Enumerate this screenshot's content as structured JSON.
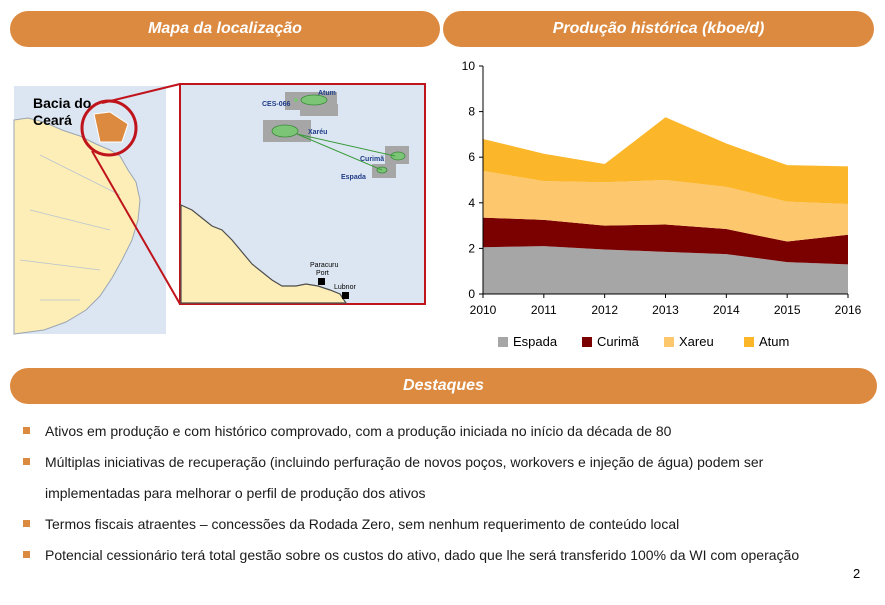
{
  "headers": {
    "map": "Mapa da localização",
    "chart": "Produção histórica (kboe/d)",
    "highlights": "Destaques"
  },
  "map": {
    "basin_label_line1": "Bacia do",
    "basin_label_line2": "Ceará",
    "fields": {
      "ces": "CES-066",
      "atum": "Atum",
      "xareu": "Xaréu",
      "curima": "Curimã",
      "espada": "Espada"
    },
    "ports": {
      "paracuru_line1": "Paracuru",
      "paracuru_line2": "Port",
      "lubnor": "Lubnor"
    }
  },
  "chart_data": {
    "type": "area",
    "stacked": true,
    "title": "Produção histórica (kboe/d)",
    "x": [
      "2010",
      "2011",
      "2012",
      "2013",
      "2014",
      "2015",
      "2016"
    ],
    "ylim": [
      0,
      10
    ],
    "yticks": [
      "0",
      "2",
      "4",
      "6",
      "8",
      "10"
    ],
    "series": [
      {
        "name": "Espada",
        "color": "#a6a6a6",
        "values": [
          2.05,
          2.1,
          1.95,
          1.85,
          1.75,
          1.4,
          1.3
        ]
      },
      {
        "name": "Curimã",
        "color": "#7b0000",
        "values": [
          1.3,
          1.15,
          1.05,
          1.2,
          1.1,
          0.9,
          1.3
        ]
      },
      {
        "name": "Xareu",
        "color": "#fcc76d",
        "values": [
          2.05,
          1.7,
          1.9,
          1.95,
          1.85,
          1.75,
          1.35
        ]
      },
      {
        "name": "Atum",
        "color": "#fbb62a",
        "values": [
          1.4,
          1.2,
          0.8,
          2.75,
          1.9,
          1.6,
          1.65
        ]
      }
    ],
    "legend": "bottom"
  },
  "bullets": [
    "Ativos em produção e com histórico comprovado, com a produção iniciada no início da década de 80",
    "Múltiplas iniciativas de recuperação (incluindo perfuração de novos poços, workovers e injeção de água) podem ser implementadas para melhorar o perfil de produção dos ativos",
    "Termos fiscais atraentes – concessões da Rodada Zero, sem nenhum requerimento de conteúdo local",
    "Potencial cessionário terá total gestão sobre os custos do ativo, dado que lhe será transferido 100% da WI com operação"
  ],
  "page_number": "2"
}
